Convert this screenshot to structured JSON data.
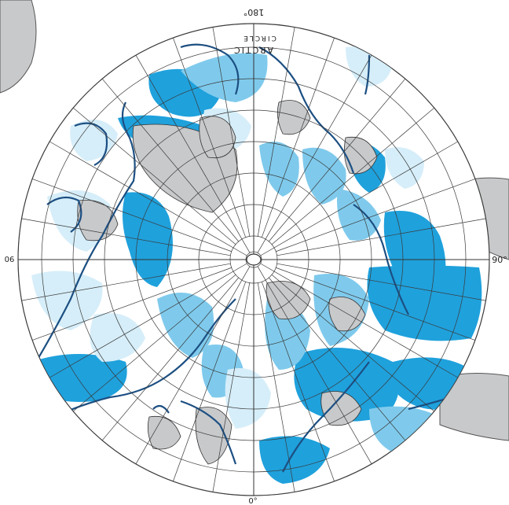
{
  "labels": {
    "top": "180°",
    "left": "90",
    "right": "90°",
    "bottom": "0°",
    "circle": "ARCTIC",
    "circle2": "CIRCLE"
  },
  "colors": {
    "dark_blue": "#1fa1dc",
    "mid_blue": "#7fcaec",
    "light_blue": "#d6eef9",
    "gray": "#c8c9cb",
    "coast": "#1c4f82",
    "grid": "#3a3a3a"
  }
}
